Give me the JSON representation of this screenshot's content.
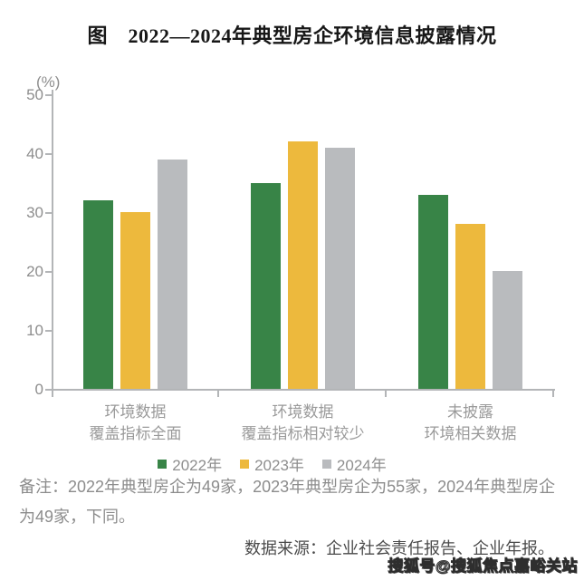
{
  "title": "图　2022—2024年典型房企环境信息披露情况",
  "chart_data": {
    "type": "bar",
    "title": "图 2022—2024年典型房企环境信息披露情况",
    "unit_label": "(%)",
    "categories": [
      "环境数据\n覆盖指标全面",
      "环境数据\n覆盖指标相对较少",
      "未披露\n环境相关数据"
    ],
    "series": [
      {
        "name": "2022年",
        "color": "#388447",
        "values": [
          32,
          35,
          33
        ]
      },
      {
        "name": "2023年",
        "color": "#edb93d",
        "values": [
          30,
          42,
          28
        ]
      },
      {
        "name": "2024年",
        "color": "#b9bbbe",
        "values": [
          39,
          41,
          20
        ]
      }
    ],
    "ylim": [
      0,
      50
    ],
    "yticks": [
      0,
      10,
      20,
      30,
      40,
      50
    ],
    "grid": false,
    "legend_position": "bottom"
  },
  "note": "备注：2022年典型房企为49家，2023年典型房企为55家，2024年典型房企为49家，下同。",
  "source": "数据来源：企业社会责任报告、企业年报。",
  "watermark": "搜狐号@搜狐焦点嘉峪关站",
  "colors": {
    "axis": "#b3b5b7",
    "tick_label": "#8e8e8e",
    "category_label": "#9a9a9a",
    "note_text": "#8c8c8c",
    "source_text": "#4b4b4b",
    "title_text": "#171717"
  }
}
